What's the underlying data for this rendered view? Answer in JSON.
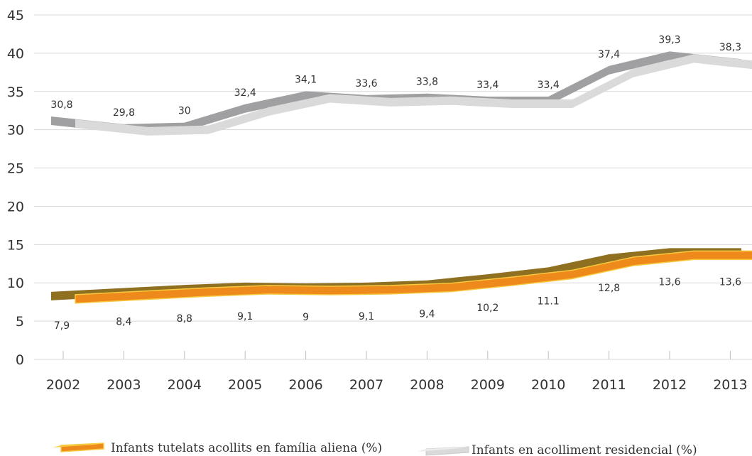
{
  "chart_data": {
    "type": "line",
    "title": "",
    "xlabel": "",
    "ylabel": "",
    "x": [
      "2002",
      "2003",
      "2004",
      "2005",
      "2006",
      "2007",
      "2008",
      "2009",
      "2010",
      "2011",
      "2012",
      "2013"
    ],
    "ylim": [
      0,
      45
    ],
    "yticks": [
      "0",
      "5",
      "10",
      "15",
      "20",
      "25",
      "30",
      "35",
      "40",
      "45"
    ],
    "grid": true,
    "legend_position": "bottom",
    "series": [
      {
        "name": "Infants en acolliment residencial (%)",
        "values": [
          30.8,
          29.8,
          30,
          32.4,
          34.1,
          33.6,
          33.8,
          33.4,
          33.4,
          37.4,
          39.3,
          38.3
        ],
        "labels": [
          "30,8",
          "29,8",
          "30",
          "32,4",
          "34,1",
          "33,6",
          "33,8",
          "33,4",
          "33,4",
          "37,4",
          "39,3",
          "38,3"
        ],
        "label_position": "above",
        "colors": {
          "front": "#dadada",
          "back": "#a0a0a2"
        }
      },
      {
        "name": "Infants tutelats acollits en família aliena (%)",
        "values": [
          7.9,
          8.4,
          8.8,
          9.1,
          9,
          9.1,
          9.4,
          10.2,
          11.1,
          12.8,
          13.6,
          13.6
        ],
        "labels": [
          "7,9",
          "8,4",
          "8,8",
          "9,1",
          "9",
          "9,1",
          "9,4",
          "10,2",
          "11.1",
          "12,8",
          "13,6",
          "13,6"
        ],
        "label_position": "below",
        "colors": {
          "front": "#ee8a1c",
          "back": "#8f7020",
          "edge": "#f7c93f"
        }
      }
    ]
  }
}
